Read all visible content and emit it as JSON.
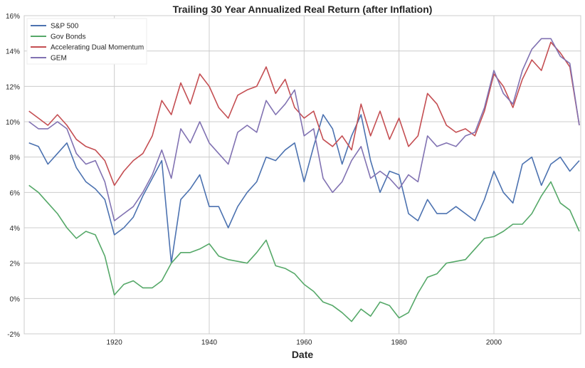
{
  "chart_data": {
    "type": "line",
    "title": "Trailing 30 Year Annualized Real Return (after Inflation)",
    "xlabel": "Date",
    "ylabel": "",
    "xlim": [
      1901,
      2018.3
    ],
    "ylim": [
      -2,
      16
    ],
    "grid": true,
    "legend_position": "top-left",
    "x_ticks": [
      1920,
      1940,
      1960,
      1980,
      2000
    ],
    "y_ticks": [
      -2,
      0,
      2,
      4,
      6,
      8,
      10,
      12,
      14,
      16
    ],
    "y_tick_labels": [
      "-2%",
      "0%",
      "2%",
      "4%",
      "6%",
      "8%",
      "10%",
      "12%",
      "14%",
      "16%"
    ],
    "x": [
      1902,
      1904,
      1906,
      1908,
      1910,
      1912,
      1914,
      1916,
      1918,
      1920,
      1922,
      1924,
      1926,
      1928,
      1930,
      1932,
      1934,
      1936,
      1938,
      1940,
      1942,
      1944,
      1946,
      1948,
      1950,
      1952,
      1954,
      1956,
      1958,
      1960,
      1962,
      1964,
      1966,
      1968,
      1970,
      1972,
      1974,
      1976,
      1978,
      1980,
      1982,
      1984,
      1986,
      1988,
      1990,
      1992,
      1994,
      1996,
      1998,
      2000,
      2002,
      2004,
      2006,
      2008,
      2010,
      2012,
      2014,
      2016,
      2018
    ],
    "series": [
      {
        "name": "S&P 500",
        "color": "#4c72b0",
        "values": [
          8.8,
          8.6,
          7.6,
          8.2,
          8.8,
          7.4,
          6.6,
          6.2,
          5.6,
          3.6,
          4.0,
          4.6,
          5.8,
          6.8,
          7.8,
          2.0,
          5.6,
          6.2,
          7.0,
          5.2,
          5.2,
          4.0,
          5.2,
          6.0,
          6.6,
          8.0,
          7.8,
          8.4,
          8.8,
          6.6,
          8.6,
          10.4,
          9.6,
          7.6,
          9.2,
          10.4,
          7.8,
          6.0,
          7.2,
          7.0,
          4.8,
          4.4,
          5.6,
          4.8,
          4.8,
          5.2,
          4.8,
          4.4,
          5.6,
          7.2,
          6.0,
          5.4,
          7.6,
          8.0,
          6.4,
          7.6,
          8.0,
          7.2,
          7.8
        ]
      },
      {
        "name": "Gov Bonds",
        "color": "#55a868",
        "values": [
          6.4,
          6.0,
          5.4,
          4.8,
          4.0,
          3.4,
          3.8,
          3.6,
          2.4,
          0.2,
          0.8,
          1.0,
          0.6,
          0.6,
          1.0,
          2.0,
          2.6,
          2.6,
          2.8,
          3.1,
          2.4,
          2.2,
          2.1,
          2.0,
          2.6,
          3.3,
          1.85,
          1.7,
          1.4,
          0.8,
          0.4,
          -0.2,
          -0.4,
          -0.8,
          -1.3,
          -0.6,
          -1.0,
          -0.2,
          -0.4,
          -1.1,
          -0.8,
          0.3,
          1.2,
          1.4,
          2.0,
          2.1,
          2.2,
          2.8,
          3.4,
          3.5,
          3.8,
          4.2,
          4.2,
          4.8,
          5.8,
          6.6,
          5.4,
          5.0,
          3.8
        ]
      },
      {
        "name": "Accelerating Dual Momentum",
        "color": "#c44e52",
        "values": [
          10.6,
          10.2,
          9.8,
          10.4,
          9.8,
          9.0,
          8.6,
          8.4,
          7.8,
          6.4,
          7.2,
          7.8,
          8.2,
          9.2,
          11.2,
          10.4,
          12.2,
          11.0,
          12.7,
          12.0,
          10.8,
          10.2,
          11.5,
          11.8,
          12.0,
          13.1,
          11.6,
          12.4,
          10.8,
          10.2,
          10.6,
          9.0,
          8.6,
          9.2,
          8.4,
          11.0,
          9.2,
          10.6,
          9.0,
          10.2,
          8.6,
          9.2,
          11.6,
          11.0,
          9.8,
          9.4,
          9.6,
          9.2,
          10.6,
          12.7,
          12.0,
          10.8,
          12.4,
          13.5,
          12.9,
          14.5,
          13.9,
          13.1,
          9.8
        ]
      },
      {
        "name": "GEM",
        "color": "#8172b2",
        "values": [
          10.0,
          9.6,
          9.6,
          10.0,
          9.6,
          8.2,
          7.6,
          7.8,
          6.6,
          4.4,
          4.8,
          5.2,
          6.0,
          7.0,
          8.4,
          6.8,
          9.6,
          8.8,
          10.0,
          8.8,
          8.2,
          7.6,
          9.4,
          9.8,
          9.4,
          11.2,
          10.4,
          11.0,
          11.8,
          9.2,
          9.6,
          6.8,
          6.0,
          6.6,
          7.8,
          8.6,
          6.8,
          7.2,
          6.8,
          6.2,
          7.0,
          6.6,
          9.2,
          8.6,
          8.8,
          8.6,
          9.2,
          9.4,
          10.8,
          12.9,
          11.6,
          11.0,
          12.9,
          14.1,
          14.7,
          14.7,
          13.7,
          13.3,
          9.8
        ]
      }
    ]
  }
}
